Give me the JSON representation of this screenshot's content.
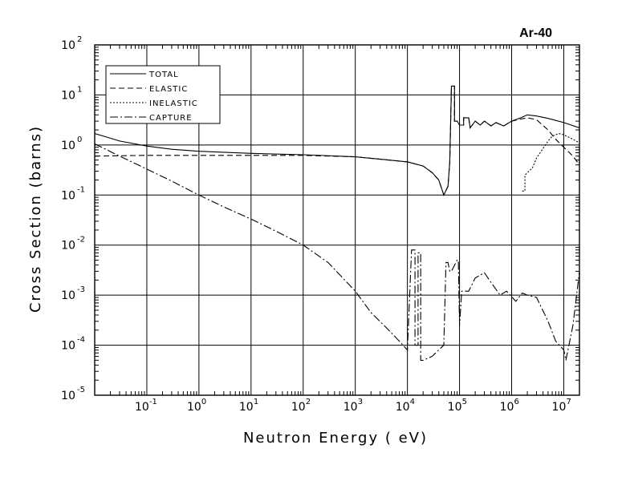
{
  "chart_data": {
    "type": "line",
    "title": "Ar-40",
    "xlabel": "Neutron Energy ( eV)",
    "ylabel": "Cross Section (barns)",
    "x_scale": "log",
    "y_scale": "log",
    "xlim": [
      0.01,
      20000000
    ],
    "ylim": [
      1e-05,
      100
    ],
    "grid": true,
    "legend_position": "top-left",
    "x_tick_base": "10",
    "y_tick_base": "10",
    "x_ticks": [
      {
        "value": 0.1,
        "exp": "-1"
      },
      {
        "value": 1,
        "exp": "0"
      },
      {
        "value": 10,
        "exp": "1"
      },
      {
        "value": 100,
        "exp": "2"
      },
      {
        "value": 1000,
        "exp": "3"
      },
      {
        "value": 10000,
        "exp": "4"
      },
      {
        "value": 100000,
        "exp": "5"
      },
      {
        "value": 1000000,
        "exp": "6"
      },
      {
        "value": 10000000,
        "exp": "7"
      }
    ],
    "y_ticks": [
      {
        "value": 100,
        "exp": "2"
      },
      {
        "value": 10,
        "exp": "1"
      },
      {
        "value": 1,
        "exp": "0"
      },
      {
        "value": 0.1,
        "exp": "-1"
      },
      {
        "value": 0.01,
        "exp": "-2"
      },
      {
        "value": 0.001,
        "exp": "-3"
      },
      {
        "value": 0.0001,
        "exp": "-4"
      },
      {
        "value": 1e-05,
        "exp": "-5"
      }
    ],
    "series": [
      {
        "name": "TOTAL",
        "dash": "none",
        "points": [
          [
            0.01,
            1.7
          ],
          [
            0.03,
            1.2
          ],
          [
            0.1,
            0.95
          ],
          [
            0.3,
            0.82
          ],
          [
            1,
            0.75
          ],
          [
            10,
            0.68
          ],
          [
            100,
            0.64
          ],
          [
            1000,
            0.58
          ],
          [
            3000,
            0.52
          ],
          [
            10000,
            0.46
          ],
          [
            20000,
            0.38
          ],
          [
            30000,
            0.28
          ],
          [
            40000,
            0.2
          ],
          [
            50000,
            0.1
          ],
          [
            60000,
            0.15
          ],
          [
            65000,
            0.45
          ],
          [
            70000,
            15
          ],
          [
            80000,
            15
          ],
          [
            80000,
            3
          ],
          [
            90000,
            3
          ],
          [
            100000,
            2.5
          ],
          [
            120000,
            2.5
          ],
          [
            120000,
            3.5
          ],
          [
            150000,
            3.5
          ],
          [
            160000,
            2.2
          ],
          [
            200000,
            3
          ],
          [
            250000,
            2.5
          ],
          [
            300000,
            3
          ],
          [
            400000,
            2.4
          ],
          [
            500000,
            2.8
          ],
          [
            700000,
            2.4
          ],
          [
            1000000,
            3
          ],
          [
            1500000,
            3.5
          ],
          [
            2000000,
            4
          ],
          [
            3000000,
            3.8
          ],
          [
            5000000,
            3.4
          ],
          [
            7000000,
            3.1
          ],
          [
            10000000,
            2.8
          ],
          [
            20000000,
            2.2
          ]
        ]
      },
      {
        "name": "ELASTIC",
        "dash": "7,4",
        "points": [
          [
            0.01,
            0.6
          ],
          [
            0.1,
            0.62
          ],
          [
            1,
            0.62
          ],
          [
            10,
            0.62
          ],
          [
            100,
            0.62
          ],
          [
            1000,
            0.58
          ],
          [
            3000,
            0.52
          ],
          [
            10000,
            0.46
          ],
          [
            20000,
            0.38
          ],
          [
            30000,
            0.28
          ],
          [
            40000,
            0.2
          ],
          [
            50000,
            0.1
          ],
          [
            60000,
            0.15
          ],
          [
            65000,
            0.45
          ],
          [
            70000,
            15
          ],
          [
            80000,
            15
          ],
          [
            80000,
            3
          ],
          [
            90000,
            3
          ],
          [
            100000,
            2.5
          ],
          [
            120000,
            2.5
          ],
          [
            120000,
            3.5
          ],
          [
            150000,
            3.5
          ],
          [
            160000,
            2.2
          ],
          [
            200000,
            3
          ],
          [
            250000,
            2.5
          ],
          [
            300000,
            3
          ],
          [
            400000,
            2.4
          ],
          [
            500000,
            2.8
          ],
          [
            700000,
            2.4
          ],
          [
            1000000,
            3
          ],
          [
            1500000,
            3.3
          ],
          [
            2000000,
            3.5
          ],
          [
            3000000,
            3.2
          ],
          [
            5000000,
            2
          ],
          [
            7000000,
            1.3
          ],
          [
            10000000,
            0.9
          ],
          [
            15000000,
            0.6
          ],
          [
            20000000,
            0.4
          ]
        ]
      },
      {
        "name": "INELASTIC",
        "dash": "2,2",
        "points": [
          [
            1600000,
            0.12
          ],
          [
            1800000,
            0.12
          ],
          [
            1800000,
            0.25
          ],
          [
            2500000,
            0.35
          ],
          [
            3000000,
            0.55
          ],
          [
            4000000,
            0.85
          ],
          [
            5000000,
            1.2
          ],
          [
            6000000,
            1.5
          ],
          [
            8000000,
            1.7
          ],
          [
            10000000,
            1.6
          ],
          [
            15000000,
            1.3
          ],
          [
            20000000,
            1.1
          ]
        ]
      },
      {
        "name": "CAPTURE",
        "dash": "10,3,2,3",
        "points": [
          [
            0.01,
            1.05
          ],
          [
            0.03,
            0.6
          ],
          [
            0.1,
            0.33
          ],
          [
            0.3,
            0.19
          ],
          [
            1,
            0.1
          ],
          [
            3,
            0.058
          ],
          [
            10,
            0.033
          ],
          [
            30,
            0.019
          ],
          [
            100,
            0.01
          ],
          [
            300,
            0.0045
          ],
          [
            1000,
            0.0012
          ],
          [
            2000,
            0.00045
          ],
          [
            4000,
            0.00022
          ],
          [
            7000,
            0.00012
          ],
          [
            10000,
            8e-05
          ],
          [
            12000,
            0.008
          ],
          [
            14000,
            0.008
          ],
          [
            14000,
            0.0001
          ],
          [
            16000,
            0.0001
          ],
          [
            16000,
            0.007
          ],
          [
            18000,
            0.007
          ],
          [
            18000,
            5e-05
          ],
          [
            20000,
            5e-05
          ],
          [
            30000,
            6e-05
          ],
          [
            40000,
            8e-05
          ],
          [
            50000,
            0.0001
          ],
          [
            55000,
            0.0045
          ],
          [
            60000,
            0.0045
          ],
          [
            65000,
            0.003
          ],
          [
            70000,
            0.003
          ],
          [
            90000,
            0.005
          ],
          [
            95000,
            0.005
          ],
          [
            100000,
            0.00025
          ],
          [
            110000,
            0.0012
          ],
          [
            150000,
            0.0012
          ],
          [
            200000,
            0.0022
          ],
          [
            300000,
            0.0028
          ],
          [
            400000,
            0.0018
          ],
          [
            600000,
            0.001
          ],
          [
            800000,
            0.0012
          ],
          [
            1200000,
            0.00075
          ],
          [
            1600000,
            0.0011
          ],
          [
            2000000,
            0.001
          ],
          [
            3000000,
            0.0009
          ],
          [
            5000000,
            0.0003
          ],
          [
            7000000,
            0.00012
          ],
          [
            10000000,
            8e-05
          ],
          [
            11000000,
            5e-05
          ],
          [
            15000000,
            0.00025
          ],
          [
            20000000,
            0.003
          ]
        ]
      }
    ]
  }
}
